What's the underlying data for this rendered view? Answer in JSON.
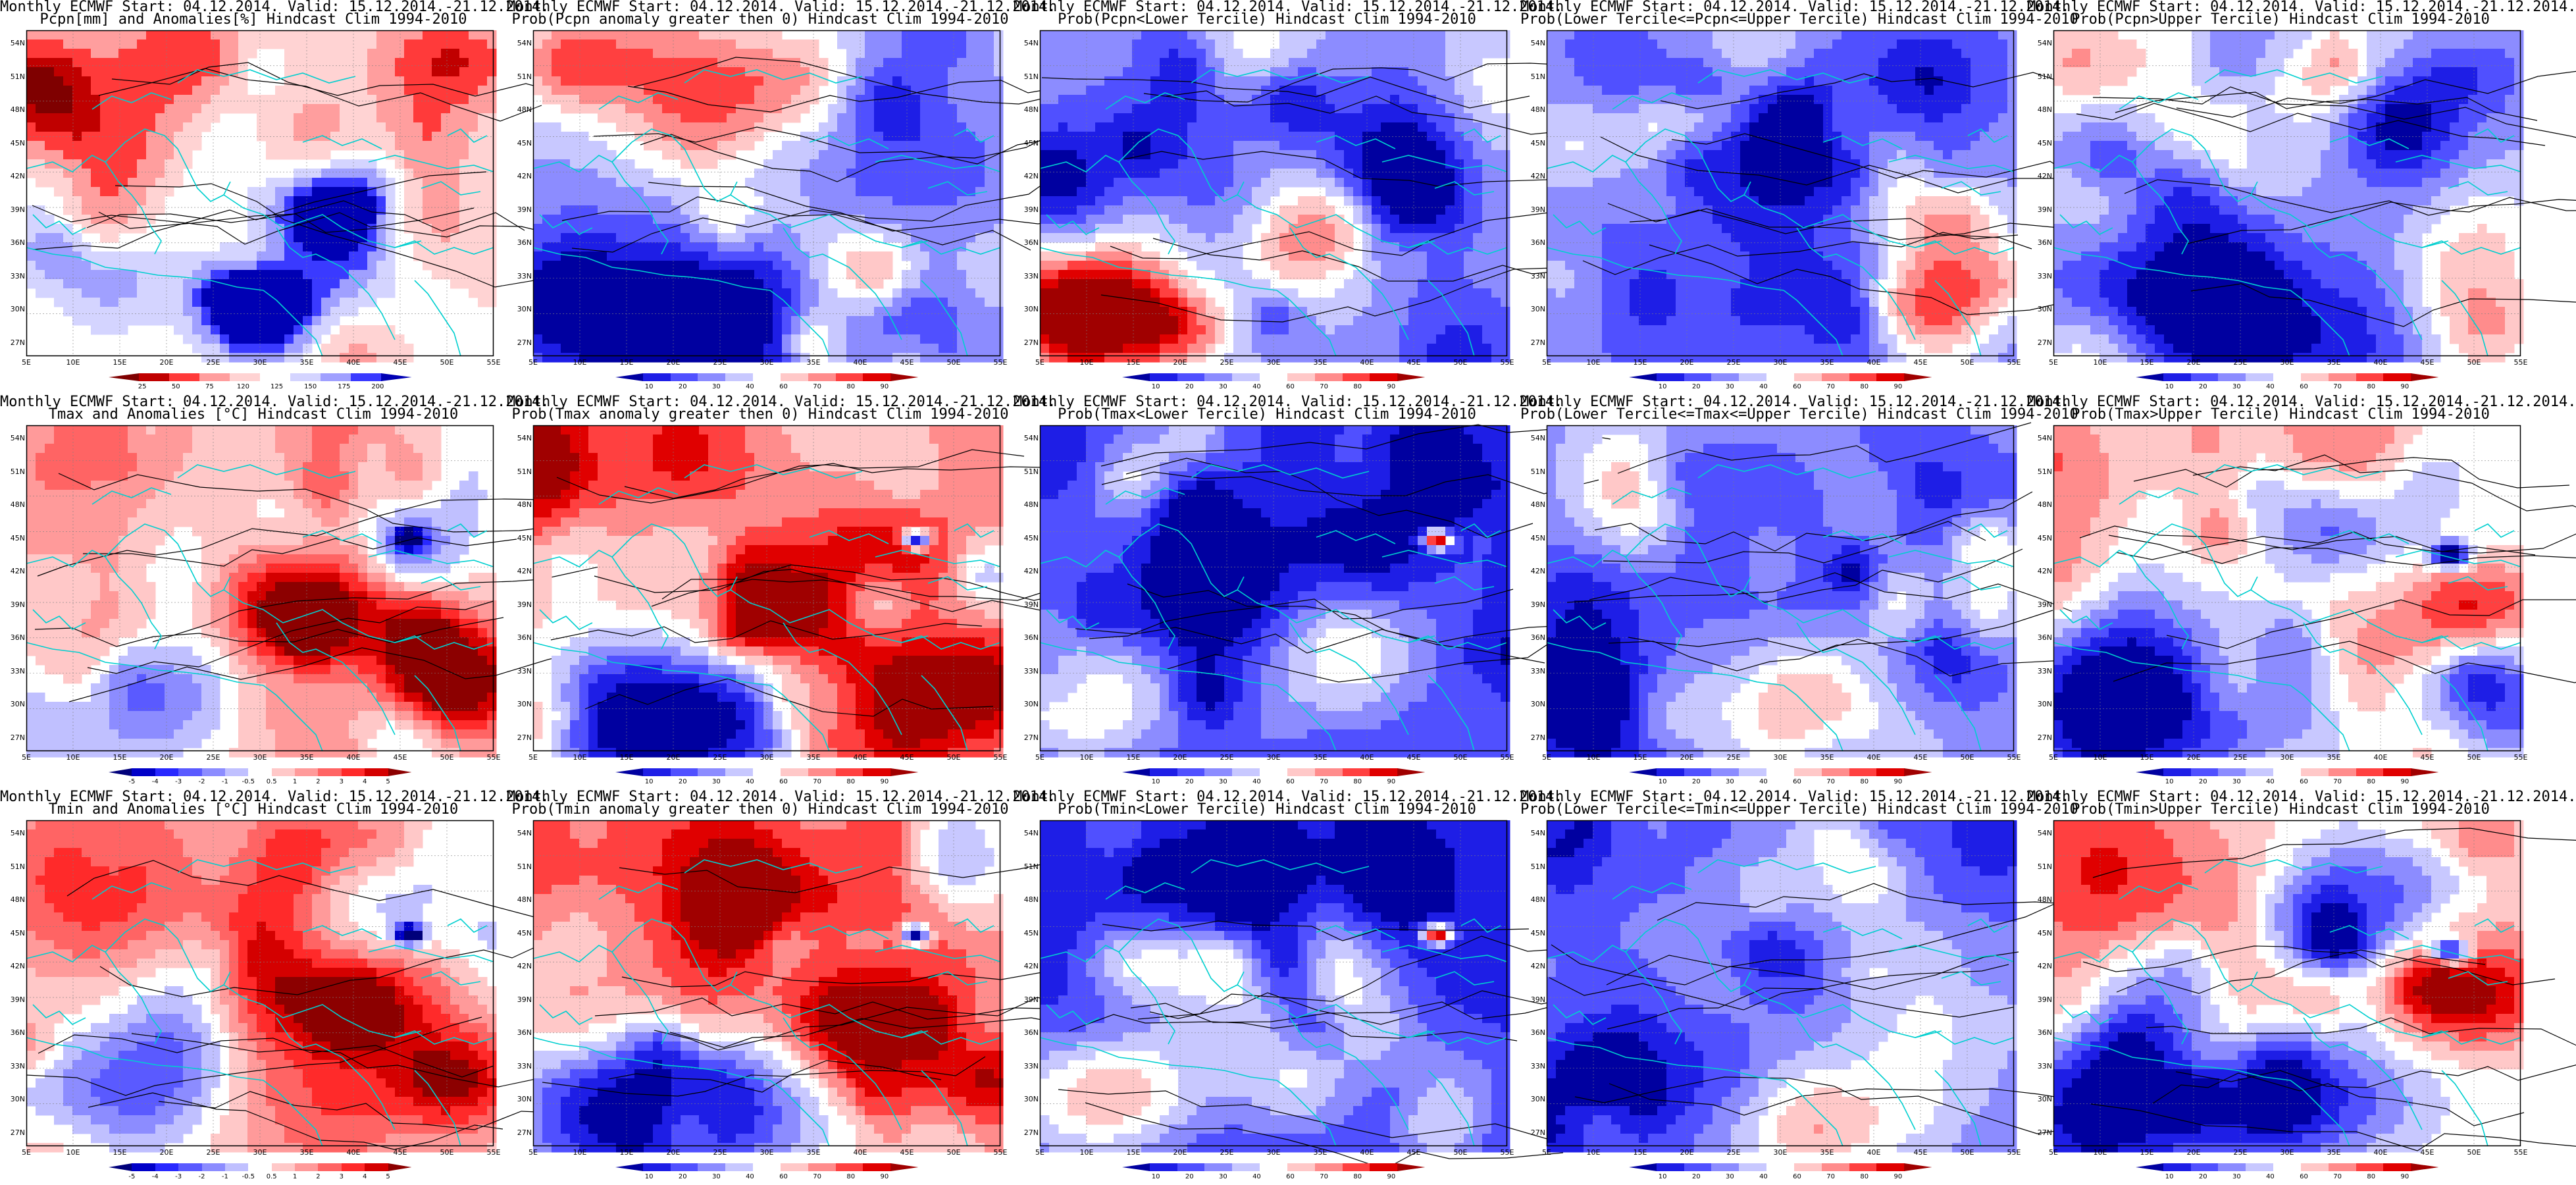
{
  "rows": [
    {
      "name": "pcpn",
      "panels": [
        {
          "line1": "Monthly ECMWF Start: 04.12.2014. Valid: 15.12.2014.-21.12.2014.",
          "line2": "Pcpn[mm] and Anomalies[%] Hindcast Clim 1994-2010",
          "style": "anomaly-pcpn",
          "colorbar": "pcpn-anom"
        },
        {
          "line1": "Monthly ECMWF Start: 04.12.2014. Valid: 15.12.2014.-21.12.2014.",
          "line2": "Prob(Pcpn anomaly greater then 0) Hindcast Clim 1994-2010",
          "style": "prob-mixed",
          "colorbar": "prob"
        },
        {
          "line1": "Monthly ECMWF Start: 04.12.2014. Valid: 15.12.2014.-21.12.2014.",
          "line2": "Prob(Pcpn<Lower Tercile) Hindcast Clim 1994-2010",
          "style": "prob-lower-pcpn",
          "colorbar": "prob"
        },
        {
          "line1": "Monthly ECMWF Start: 04.12.2014. Valid: 15.12.2014.-21.12.2014.",
          "line2": "Prob(Lower Tercile<=Pcpn<=Upper Tercile) Hindcast Clim 1994-2010",
          "style": "prob-middle",
          "colorbar": "prob"
        },
        {
          "line1": "Monthly ECMWF Start: 04.12.2014. Valid: 15.12.2014.-21.12.2014.",
          "line2": "Prob(Pcpn>Upper Tercile) Hindcast Clim 1994-2010",
          "style": "prob-mixed",
          "colorbar": "prob"
        }
      ]
    },
    {
      "name": "tmax",
      "panels": [
        {
          "line1": "Monthly ECMWF Start: 04.12.2014. Valid: 15.12.2014.-21.12.2014.",
          "line2": "Tmax and Anomalies [°C] Hindcast Clim 1994-2010",
          "style": "anomaly-temp",
          "colorbar": "temp-anom"
        },
        {
          "line1": "Monthly ECMWF Start: 04.12.2014. Valid: 15.12.2014.-21.12.2014.",
          "line2": "Prob(Tmax anomaly greater then 0) Hindcast Clim 1994-2010",
          "style": "prob-warm",
          "colorbar": "prob"
        },
        {
          "line1": "Monthly ECMWF Start: 04.12.2014. Valid: 15.12.2014.-21.12.2014.",
          "line2": "Prob(Tmax<Lower Tercile) Hindcast Clim 1994-2010",
          "style": "prob-cold",
          "colorbar": "prob"
        },
        {
          "line1": "Monthly ECMWF Start: 04.12.2014. Valid: 15.12.2014.-21.12.2014.",
          "line2": "Prob(Lower Tercile<=Tmax<=Upper Tercile) Hindcast Clim 1994-2010",
          "style": "prob-middle",
          "colorbar": "prob"
        },
        {
          "line1": "Monthly ECMWF Start: 04.12.2014. Valid: 15.12.2014.-21.12.2014.",
          "line2": "Prob(Tmax>Upper Tercile) Hindcast Clim 1994-2010",
          "style": "prob-warm-b",
          "colorbar": "prob"
        }
      ]
    },
    {
      "name": "tmin",
      "panels": [
        {
          "line1": "Monthly ECMWF Start: 04.12.2014. Valid: 15.12.2014.-21.12.2014.",
          "line2": "Tmin and Anomalies [°C] Hindcast Clim 1994-2010",
          "style": "anomaly-temp",
          "colorbar": "temp-anom"
        },
        {
          "line1": "Monthly ECMWF Start: 04.12.2014. Valid: 15.12.2014.-21.12.2014.",
          "line2": "Prob(Tmin anomaly greater then 0) Hindcast Clim 1994-2010",
          "style": "prob-warm",
          "colorbar": "prob"
        },
        {
          "line1": "Monthly ECMWF Start: 04.12.2014. Valid: 15.12.2014.-21.12.2014.",
          "line2": "Prob(Tmin<Lower Tercile) Hindcast Clim 1994-2010",
          "style": "prob-cold",
          "colorbar": "prob"
        },
        {
          "line1": "Monthly ECMWF Start: 04.12.2014. Valid: 15.12.2014.-21.12.2014.",
          "line2": "Prob(Lower Tercile<=Tmin<=Upper Tercile) Hindcast Clim 1994-2010",
          "style": "prob-middle",
          "colorbar": "prob"
        },
        {
          "line1": "Monthly ECMWF Start: 04.12.2014. Valid: 15.12.2014.-21.12.2014.",
          "line2": "Prob(Tmin>Upper Tercile) Hindcast Clim 1994-2010",
          "style": "prob-warm-b",
          "colorbar": "prob"
        }
      ]
    }
  ],
  "axes": {
    "lat_labels": [
      "54N",
      "51N",
      "48N",
      "45N",
      "42N",
      "39N",
      "36N",
      "33N",
      "30N",
      "27N"
    ],
    "lon_labels": [
      "5E",
      "10E",
      "15E",
      "20E",
      "25E",
      "30E",
      "35E",
      "40E",
      "45E",
      "50E",
      "55E"
    ]
  },
  "colorbars": {
    "pcpn-anom": {
      "labels": [
        "25",
        "50",
        "75",
        "120",
        "125",
        "150",
        "175",
        "200"
      ],
      "colors": [
        "#7f0000",
        "#c00000",
        "#ff3a3a",
        "#ff9e9e",
        "#ffd3d3",
        "#ffffff",
        "#d4d4ff",
        "#a0a0ff",
        "#3a3aff",
        "#0000b4"
      ]
    },
    "prob": {
      "labels": [
        "10",
        "20",
        "30",
        "40",
        "60",
        "70",
        "80",
        "90"
      ],
      "colors": [
        "#0000a0",
        "#1e1ee6",
        "#5050ff",
        "#8c8cff",
        "#c8c8ff",
        "#ffffff",
        "#ffc8c8",
        "#ff8c8c",
        "#ff4040",
        "#e00000",
        "#a00000"
      ]
    },
    "temp-anom": {
      "labels": [
        "-5",
        "-4",
        "-3",
        "-2",
        "-1",
        "-0.5",
        "0.5",
        "1",
        "2",
        "3",
        "4",
        "5"
      ],
      "colors": [
        "#00007a",
        "#0000c8",
        "#2828ff",
        "#5a5aff",
        "#8c8cff",
        "#c0c0ff",
        "#ffffff",
        "#ffc8c8",
        "#ff9a9a",
        "#ff6464",
        "#ff2a2a",
        "#d40000",
        "#8c0000"
      ]
    }
  },
  "colors": {
    "coastline": "#00cfcf",
    "contour": "#000000",
    "grid": "#808080"
  }
}
